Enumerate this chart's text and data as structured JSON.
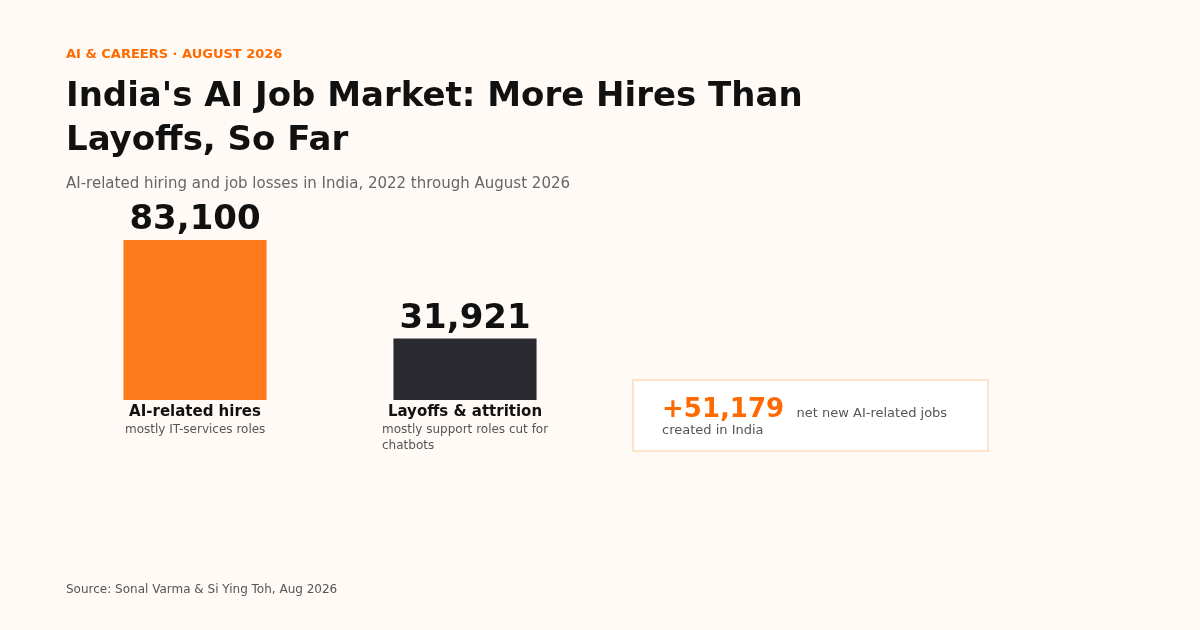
{
  "chart_data": {
    "type": "bar",
    "title": "India's AI Job Market: More Hires Than Layoffs, So Far",
    "subtitle": "AI-related hiring and job losses in India, 2022 through August 2026",
    "categories": [
      "AI-related hires",
      "Layoffs & attrition"
    ],
    "values": [
      83100,
      31921
    ],
    "colors": [
      "#ff7a1a",
      "#2a2a30"
    ],
    "value_labels": [
      "83,100",
      "31,921"
    ],
    "annotations": [
      "AI & CAREERS · AUGUST 2026",
      "+51,179 net new AI-related jobs created in India",
      "Source: Sonal Varma & Si Ying Toh, Aug 2026",
      "mostly IT-services roles",
      "mostly support roles cut for chatbots"
    ]
  }
}
